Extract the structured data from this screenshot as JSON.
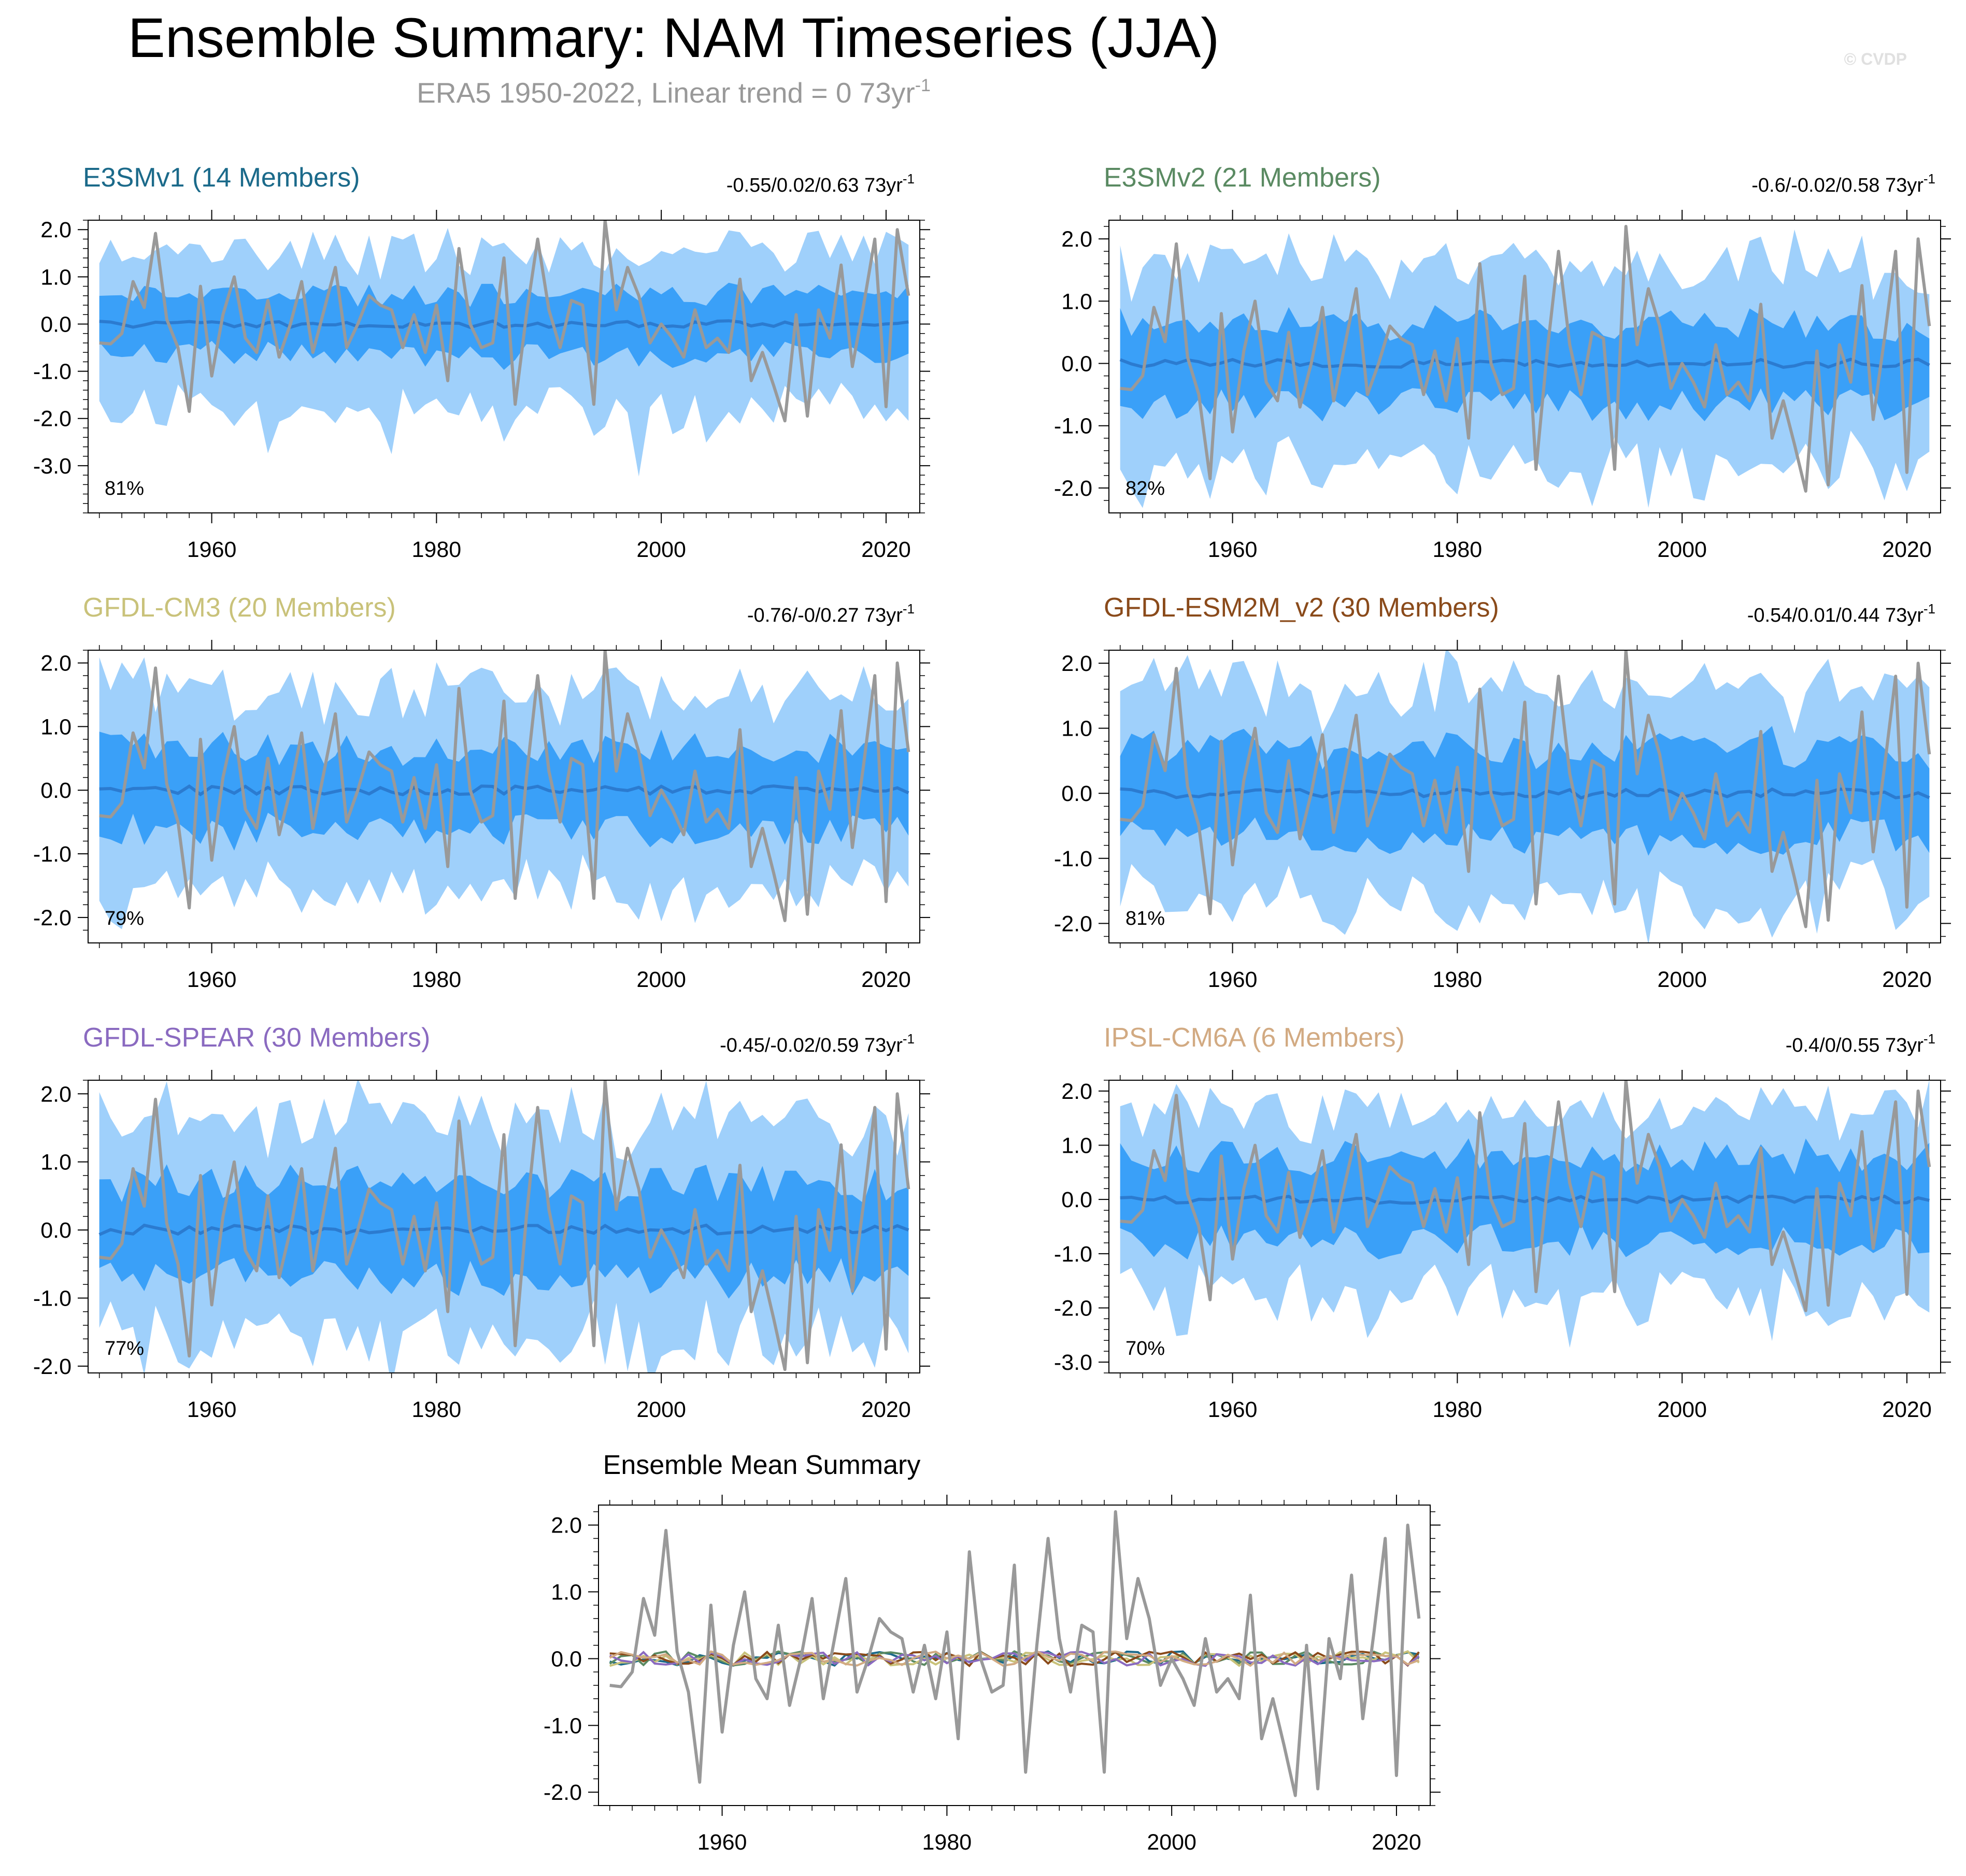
{
  "title": "Ensemble Summary: NAM Timeseries (JJA)",
  "subtitle": "ERA5 1950-2022, Linear trend = 0 73yr",
  "subtitle_sup": "-1",
  "watermark": "© CVDP",
  "colors": {
    "outer_band": "#9fd0fb",
    "inner_band": "#3aa0f8",
    "mean_line": "#2b7bd0",
    "obs_line": "#999999"
  },
  "chart_data": [
    {
      "type": "line",
      "title": "E3SMv1 (14 Members)",
      "title_color": "#1b6a8a",
      "trend": "-0.55/0.02/0.63 73yr",
      "trend_sup": "-1",
      "pct": "81%",
      "ylim": [
        -4.0,
        2.2
      ],
      "yticks": [
        2.0,
        1.0,
        0.0,
        -1.0,
        -2.0,
        -3.0
      ],
      "ytick_labels": [
        "2.0",
        "1.0",
        "0.0",
        "-1.0",
        "-2.0",
        "-3.0"
      ],
      "xlim": [
        1949,
        2023
      ],
      "xticks": [
        1960,
        1980,
        2000,
        2020
      ],
      "xtick_labels": [
        "1960",
        "1980",
        "2000",
        "2020"
      ],
      "seed": 11,
      "outer": 1.45,
      "inner": 0.7,
      "outer_low_extra": 0.6
    },
    {
      "type": "line",
      "title": "E3SMv2 (21 Members)",
      "title_color": "#5a8a62",
      "trend": "-0.6/-0.02/0.58 73yr",
      "trend_sup": "-1",
      "pct": "82%",
      "ylim": [
        -2.4,
        2.3
      ],
      "yticks": [
        2.0,
        1.0,
        0.0,
        -1.0,
        -2.0
      ],
      "ytick_labels": [
        "2.0",
        "1.0",
        "0.0",
        "-1.0",
        "-2.0"
      ],
      "xlim": [
        1949,
        2023
      ],
      "xticks": [
        1960,
        1980,
        2000,
        2020
      ],
      "xtick_labels": [
        "1960",
        "1980",
        "2000",
        "2020"
      ],
      "seed": 23,
      "outer": 1.5,
      "inner": 0.7,
      "outer_low_extra": 0.1
    },
    {
      "type": "line",
      "title": "GFDL-CM3 (20 Members)",
      "title_color": "#c9c27a",
      "trend": "-0.76/-0/0.27 73yr",
      "trend_sup": "-1",
      "pct": "79%",
      "ylim": [
        -2.4,
        2.2
      ],
      "yticks": [
        2.0,
        1.0,
        0.0,
        -1.0,
        -2.0
      ],
      "ytick_labels": [
        "2.0",
        "1.0",
        "0.0",
        "-1.0",
        "-2.0"
      ],
      "xlim": [
        1949,
        2023
      ],
      "xticks": [
        1960,
        1980,
        2000,
        2020
      ],
      "xtick_labels": [
        "1960",
        "1980",
        "2000",
        "2020"
      ],
      "seed": 37,
      "outer": 1.45,
      "inner": 0.7,
      "outer_low_extra": 0.1
    },
    {
      "type": "line",
      "title": "GFDL-ESM2M_v2 (30 Members)",
      "title_color": "#8a4a1a",
      "trend": "-0.54/0.01/0.44 73yr",
      "trend_sup": "-1",
      "pct": "81%",
      "ylim": [
        -2.3,
        2.2
      ],
      "yticks": [
        2.0,
        1.0,
        0.0,
        -1.0,
        -2.0
      ],
      "ytick_labels": [
        "2.0",
        "1.0",
        "0.0",
        "-1.0",
        "-2.0"
      ],
      "xlim": [
        1949,
        2023
      ],
      "xticks": [
        1960,
        1980,
        2000,
        2020
      ],
      "xtick_labels": [
        "1960",
        "1980",
        "2000",
        "2020"
      ],
      "seed": 41,
      "outer": 1.45,
      "inner": 0.75,
      "outer_low_extra": 0.05
    },
    {
      "type": "line",
      "title": "GFDL-SPEAR (30 Members)",
      "title_color": "#8a6ac0",
      "trend": "-0.45/-0.02/0.59 73yr",
      "trend_sup": "-1",
      "pct": "77%",
      "ylim": [
        -2.1,
        2.2
      ],
      "yticks": [
        2.0,
        1.0,
        0.0,
        -1.0,
        -2.0
      ],
      "ytick_labels": [
        "2.0",
        "1.0",
        "0.0",
        "-1.0",
        "-2.0"
      ],
      "xlim": [
        1949,
        2023
      ],
      "xticks": [
        1960,
        1980,
        2000,
        2020
      ],
      "xtick_labels": [
        "1960",
        "1980",
        "2000",
        "2020"
      ],
      "seed": 53,
      "outer": 1.45,
      "inner": 0.75,
      "outer_low_extra": 0.05
    },
    {
      "type": "line",
      "title": "IPSL-CM6A (6 Members)",
      "title_color": "#d2aa82",
      "trend": "-0.4/0/0.55 73yr",
      "trend_sup": "-1",
      "pct": "70%",
      "ylim": [
        -3.2,
        2.2
      ],
      "yticks": [
        2.0,
        1.0,
        0.0,
        -1.0,
        -2.0,
        -3.0
      ],
      "ytick_labels": [
        "2.0",
        "1.0",
        "0.0",
        "-1.0",
        "-2.0",
        "-3.0"
      ],
      "xlim": [
        1949,
        2023
      ],
      "xticks": [
        1960,
        1980,
        2000,
        2020
      ],
      "xtick_labels": [
        "1960",
        "1980",
        "2000",
        "2020"
      ],
      "seed": 67,
      "outer": 1.45,
      "inner": 0.85,
      "outer_low_extra": 0.3
    },
    {
      "type": "line",
      "title": "Ensemble Mean Summary",
      "ylim": [
        -2.2,
        2.3
      ],
      "yticks": [
        2.0,
        1.0,
        0.0,
        -1.0,
        -2.0
      ],
      "ytick_labels": [
        "2.0",
        "1.0",
        "0.0",
        "-1.0",
        "-2.0"
      ],
      "xlim": [
        1949,
        2023
      ],
      "xticks": [
        1960,
        1980,
        2000,
        2020
      ],
      "xtick_labels": [
        "1960",
        "1980",
        "2000",
        "2020"
      ],
      "series_colors": [
        "#1b6a8a",
        "#5a8a62",
        "#c9c27a",
        "#8a4a1a",
        "#8a6ac0",
        "#d2aa82"
      ]
    }
  ],
  "observed": {
    "name": "ERA5",
    "years_start": 1950,
    "values": [
      -0.4,
      -0.42,
      -0.2,
      0.9,
      0.35,
      1.92,
      0.1,
      -0.5,
      -1.85,
      0.8,
      -1.1,
      0.2,
      1.0,
      -0.3,
      -0.6,
      0.5,
      -0.7,
      0.0,
      0.9,
      -0.6,
      0.3,
      1.2,
      -0.5,
      0.0,
      0.6,
      0.4,
      0.3,
      -0.5,
      0.2,
      -0.6,
      0.4,
      -1.2,
      1.6,
      0.0,
      -0.5,
      -0.4,
      1.4,
      -1.7,
      0.2,
      1.8,
      0.3,
      -0.5,
      0.5,
      0.4,
      -1.7,
      2.2,
      0.3,
      1.2,
      0.6,
      -0.4,
      0.0,
      -0.3,
      -0.7,
      0.3,
      -0.5,
      -0.3,
      -0.6,
      0.95,
      -1.2,
      -0.6,
      -1.3,
      -2.05,
      0.2,
      -1.95,
      0.3,
      -0.3,
      1.25,
      -0.9,
      0.4,
      1.8,
      -1.75,
      2.0,
      0.6
    ]
  }
}
